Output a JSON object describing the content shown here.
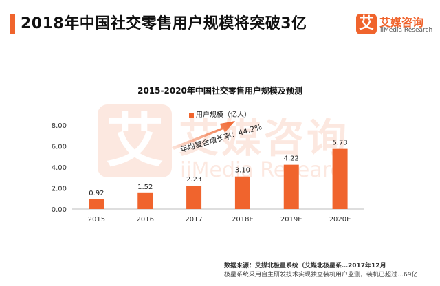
{
  "header": {
    "title": "2018年中国社交零售用户规模将突破3亿",
    "accent_color": "#f0642d"
  },
  "brand": {
    "logo_char": "艾",
    "name_cn": "艾媒咨询",
    "name_en": "iiMedia Research"
  },
  "watermark": {
    "logo_char": "艾",
    "name_cn": "艾媒咨询",
    "name_en": "iiMedia Researc"
  },
  "annotation": {
    "cagr_text": "年均复合增长率：44.2%"
  },
  "footer": {
    "source_line": "数据来源：艾媒北极星系统（艾媒北极星系…2017年12月",
    "method_line": "极星系统采用自主研发技术实现独立装机用户监测，装机已超过…69亿"
  },
  "chart_data": {
    "type": "bar",
    "title": "2015-2020年中国社交零售用户规模及预测",
    "categories": [
      "2015",
      "2016",
      "2017",
      "2018E",
      "2019E",
      "2020E"
    ],
    "series": [
      {
        "name": "用户规模（亿人）",
        "values": [
          0.92,
          1.52,
          2.23,
          3.1,
          4.22,
          5.73
        ]
      }
    ],
    "value_labels": [
      "0.92",
      "1.52",
      "2.23",
      "3.10",
      "4.22",
      "5.73"
    ],
    "yticks": [
      "0.00",
      "2.00",
      "4.00",
      "6.00",
      "8.00"
    ],
    "ylim": [
      0,
      8
    ],
    "xlabel": "",
    "ylabel": "",
    "grid": false,
    "legend_position": "top-center",
    "bar_color": "#f0642d"
  }
}
